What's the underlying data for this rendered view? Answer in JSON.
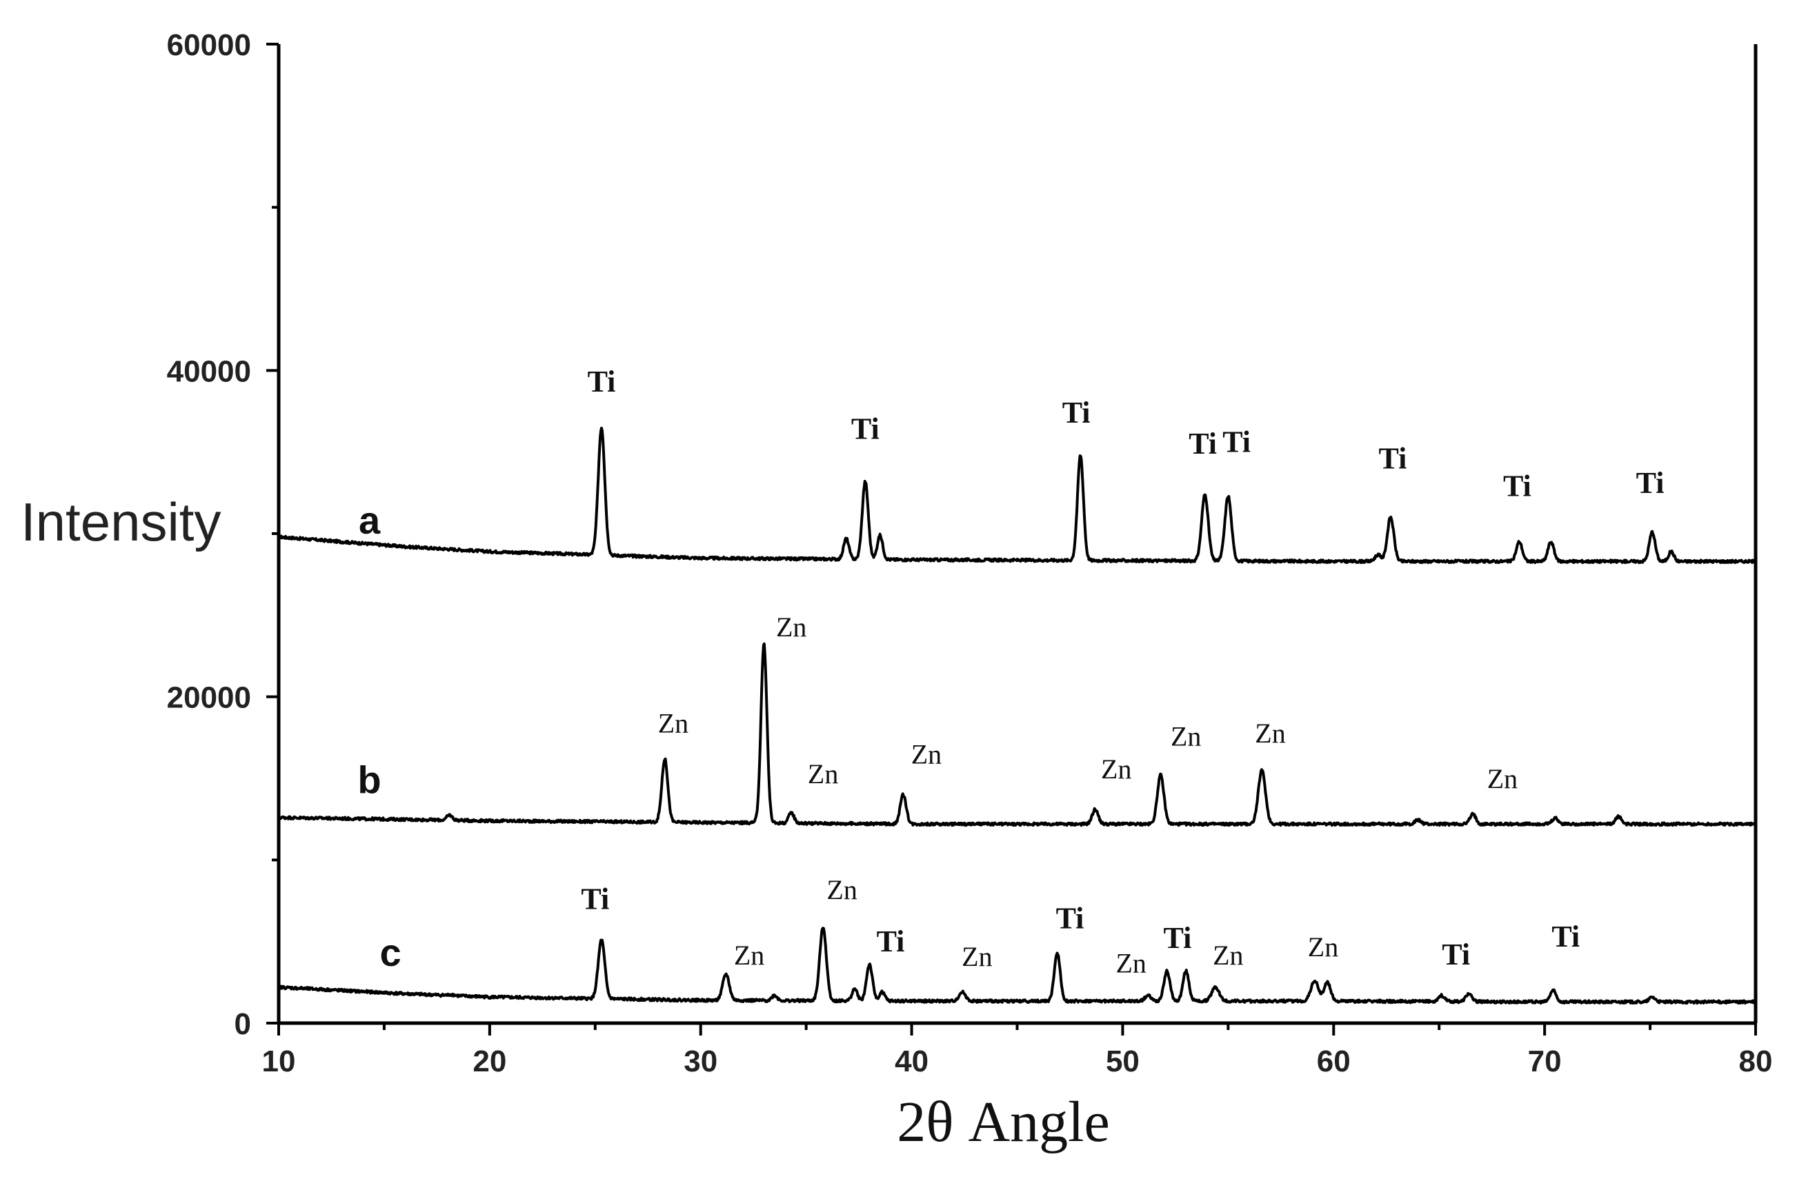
{
  "chart_data": {
    "type": "line",
    "title": "",
    "xlabel": "2θ Angle",
    "ylabel": "Intensity",
    "xlim": [
      10,
      80
    ],
    "ylim": [
      0,
      60000
    ],
    "xticks": [
      10,
      20,
      30,
      40,
      50,
      60,
      70,
      80
    ],
    "yticks": [
      0,
      20000,
      40000,
      60000
    ],
    "xtick_labels": [
      "10",
      "20",
      "30",
      "40",
      "50",
      "60",
      "70",
      "80"
    ],
    "ytick_labels": [
      "0",
      "20000",
      "40000",
      "60000"
    ],
    "grid": false,
    "series": [
      {
        "name": "a",
        "color": "#000000",
        "baseline": [
          [
            10,
            29800
          ],
          [
            13,
            29500
          ],
          [
            16,
            29200
          ],
          [
            20,
            28900
          ],
          [
            25,
            28700
          ],
          [
            30,
            28500
          ],
          [
            40,
            28400
          ],
          [
            50,
            28350
          ],
          [
            60,
            28300
          ],
          [
            70,
            28300
          ],
          [
            80,
            28300
          ]
        ],
        "peaks": [
          {
            "x": 25.3,
            "y": 36500,
            "w": 0.22
          },
          {
            "x": 36.9,
            "y": 29700,
            "w": 0.18
          },
          {
            "x": 37.8,
            "y": 33200,
            "w": 0.2
          },
          {
            "x": 38.5,
            "y": 29900,
            "w": 0.18
          },
          {
            "x": 48.0,
            "y": 34800,
            "w": 0.2
          },
          {
            "x": 53.9,
            "y": 32400,
            "w": 0.22
          },
          {
            "x": 55.0,
            "y": 32300,
            "w": 0.22
          },
          {
            "x": 62.1,
            "y": 28700,
            "w": 0.2
          },
          {
            "x": 62.7,
            "y": 31000,
            "w": 0.22
          },
          {
            "x": 68.8,
            "y": 29500,
            "w": 0.2
          },
          {
            "x": 70.3,
            "y": 29500,
            "w": 0.2
          },
          {
            "x": 75.1,
            "y": 30100,
            "w": 0.2
          },
          {
            "x": 76.0,
            "y": 28900,
            "w": 0.18
          }
        ],
        "label": {
          "text": "a",
          "x": 14.3,
          "y": 30000
        },
        "annotations": [
          {
            "text": "Ti",
            "x": 25.3,
            "y": 38700
          },
          {
            "text": "Ti",
            "x": 37.8,
            "y": 35800
          },
          {
            "text": "Ti",
            "x": 47.8,
            "y": 36800
          },
          {
            "text": "Ti",
            "x": 53.8,
            "y": 34900
          },
          {
            "text": "Ti",
            "x": 55.4,
            "y": 35000
          },
          {
            "text": "Ti",
            "x": 62.8,
            "y": 34000
          },
          {
            "text": "Ti",
            "x": 68.7,
            "y": 32300
          },
          {
            "text": "Ti",
            "x": 75.0,
            "y": 32500
          }
        ]
      },
      {
        "name": "b",
        "color": "#000000",
        "baseline": [
          [
            10,
            12600
          ],
          [
            20,
            12400
          ],
          [
            30,
            12300
          ],
          [
            40,
            12200
          ],
          [
            50,
            12200
          ],
          [
            60,
            12200
          ],
          [
            70,
            12200
          ],
          [
            80,
            12200
          ]
        ],
        "peaks": [
          {
            "x": 18.1,
            "y": 12750,
            "w": 0.18
          },
          {
            "x": 28.3,
            "y": 16200,
            "w": 0.2
          },
          {
            "x": 33.0,
            "y": 23200,
            "w": 0.2
          },
          {
            "x": 34.3,
            "y": 12900,
            "w": 0.18
          },
          {
            "x": 39.6,
            "y": 14000,
            "w": 0.2
          },
          {
            "x": 48.7,
            "y": 13100,
            "w": 0.2
          },
          {
            "x": 51.8,
            "y": 15200,
            "w": 0.22
          },
          {
            "x": 56.6,
            "y": 15500,
            "w": 0.24
          },
          {
            "x": 64.0,
            "y": 12450,
            "w": 0.2
          },
          {
            "x": 66.6,
            "y": 12800,
            "w": 0.2
          },
          {
            "x": 70.5,
            "y": 12550,
            "w": 0.2
          },
          {
            "x": 73.5,
            "y": 12650,
            "w": 0.2
          }
        ],
        "label": {
          "text": "b",
          "x": 14.3,
          "y": 14100
        },
        "annotations": [
          {
            "text": "Zn",
            "x": 28.7,
            "y": 17800
          },
          {
            "text": "Zn",
            "x": 34.3,
            "y": 23700
          },
          {
            "text": "Zn",
            "x": 35.8,
            "y": 14700
          },
          {
            "text": "Zn",
            "x": 40.7,
            "y": 15900
          },
          {
            "text": "Zn",
            "x": 49.7,
            "y": 15000
          },
          {
            "text": "Zn",
            "x": 53.0,
            "y": 17000
          },
          {
            "text": "Zn",
            "x": 57.0,
            "y": 17200
          },
          {
            "text": "Zn",
            "x": 68.0,
            "y": 14400
          }
        ]
      },
      {
        "name": "c",
        "color": "#000000",
        "baseline": [
          [
            10,
            2200
          ],
          [
            13,
            2000
          ],
          [
            16,
            1800
          ],
          [
            20,
            1600
          ],
          [
            25,
            1500
          ],
          [
            30,
            1400
          ],
          [
            40,
            1350
          ],
          [
            50,
            1350
          ],
          [
            60,
            1350
          ],
          [
            70,
            1300
          ],
          [
            80,
            1300
          ]
        ],
        "peaks": [
          {
            "x": 18.2,
            "y": 1750,
            "w": 0.18
          },
          {
            "x": 25.3,
            "y": 5100,
            "w": 0.22
          },
          {
            "x": 31.2,
            "y": 3000,
            "w": 0.22
          },
          {
            "x": 33.5,
            "y": 1700,
            "w": 0.18
          },
          {
            "x": 35.8,
            "y": 5900,
            "w": 0.22
          },
          {
            "x": 37.3,
            "y": 2100,
            "w": 0.18
          },
          {
            "x": 38.0,
            "y": 3600,
            "w": 0.2
          },
          {
            "x": 38.6,
            "y": 1900,
            "w": 0.18
          },
          {
            "x": 42.4,
            "y": 1900,
            "w": 0.22
          },
          {
            "x": 46.9,
            "y": 4300,
            "w": 0.2
          },
          {
            "x": 51.2,
            "y": 1700,
            "w": 0.2
          },
          {
            "x": 52.1,
            "y": 3200,
            "w": 0.2
          },
          {
            "x": 53.0,
            "y": 3200,
            "w": 0.2
          },
          {
            "x": 54.4,
            "y": 2200,
            "w": 0.25
          },
          {
            "x": 59.1,
            "y": 2600,
            "w": 0.25
          },
          {
            "x": 59.7,
            "y": 2500,
            "w": 0.22
          },
          {
            "x": 65.1,
            "y": 1700,
            "w": 0.2
          },
          {
            "x": 66.4,
            "y": 1800,
            "w": 0.2
          },
          {
            "x": 70.4,
            "y": 2000,
            "w": 0.2
          },
          {
            "x": 75.1,
            "y": 1600,
            "w": 0.2
          }
        ],
        "label": {
          "text": "c",
          "x": 15.3,
          "y": 3500
        },
        "annotations": [
          {
            "text": "Ti",
            "x": 25.0,
            "y": 7000
          },
          {
            "text": "Zn",
            "x": 32.3,
            "y": 3600
          },
          {
            "text": "Zn",
            "x": 36.7,
            "y": 7600
          },
          {
            "text": "Ti",
            "x": 39.0,
            "y": 4400
          },
          {
            "text": "Zn",
            "x": 43.1,
            "y": 3500
          },
          {
            "text": "Ti",
            "x": 47.5,
            "y": 5800
          },
          {
            "text": "Zn",
            "x": 50.4,
            "y": 3100
          },
          {
            "text": "Ti",
            "x": 52.6,
            "y": 4600
          },
          {
            "text": "Zn",
            "x": 55.0,
            "y": 3600
          },
          {
            "text": "Zn",
            "x": 59.5,
            "y": 4100
          },
          {
            "text": "Ti",
            "x": 65.8,
            "y": 3600
          },
          {
            "text": "Ti",
            "x": 71.0,
            "y": 4700
          }
        ]
      }
    ]
  }
}
